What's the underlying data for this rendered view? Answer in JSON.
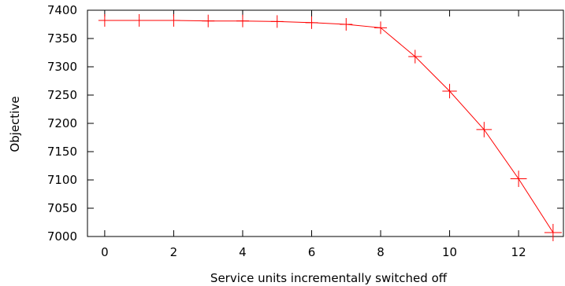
{
  "chart_data": {
    "type": "line",
    "title": "",
    "xlabel": "Service units incrementally switched off",
    "ylabel": "Objective",
    "xlim": [
      -0.5,
      13.3
    ],
    "ylim": [
      7000,
      7400
    ],
    "xticks": [
      0,
      2,
      4,
      6,
      8,
      10,
      12
    ],
    "yticks": [
      7000,
      7050,
      7100,
      7150,
      7200,
      7250,
      7300,
      7350,
      7400
    ],
    "grid": false,
    "legend": "none",
    "marker": "plus",
    "series_color": "#ff0000",
    "series": [
      {
        "x": [
          0,
          1,
          2,
          3,
          4,
          5,
          6,
          7,
          8,
          9,
          10,
          11,
          12,
          13
        ],
        "y": [
          7382,
          7382,
          7382,
          7381,
          7381,
          7380,
          7378,
          7375,
          7369,
          7318,
          7257,
          7189,
          7102,
          7007
        ]
      }
    ]
  }
}
